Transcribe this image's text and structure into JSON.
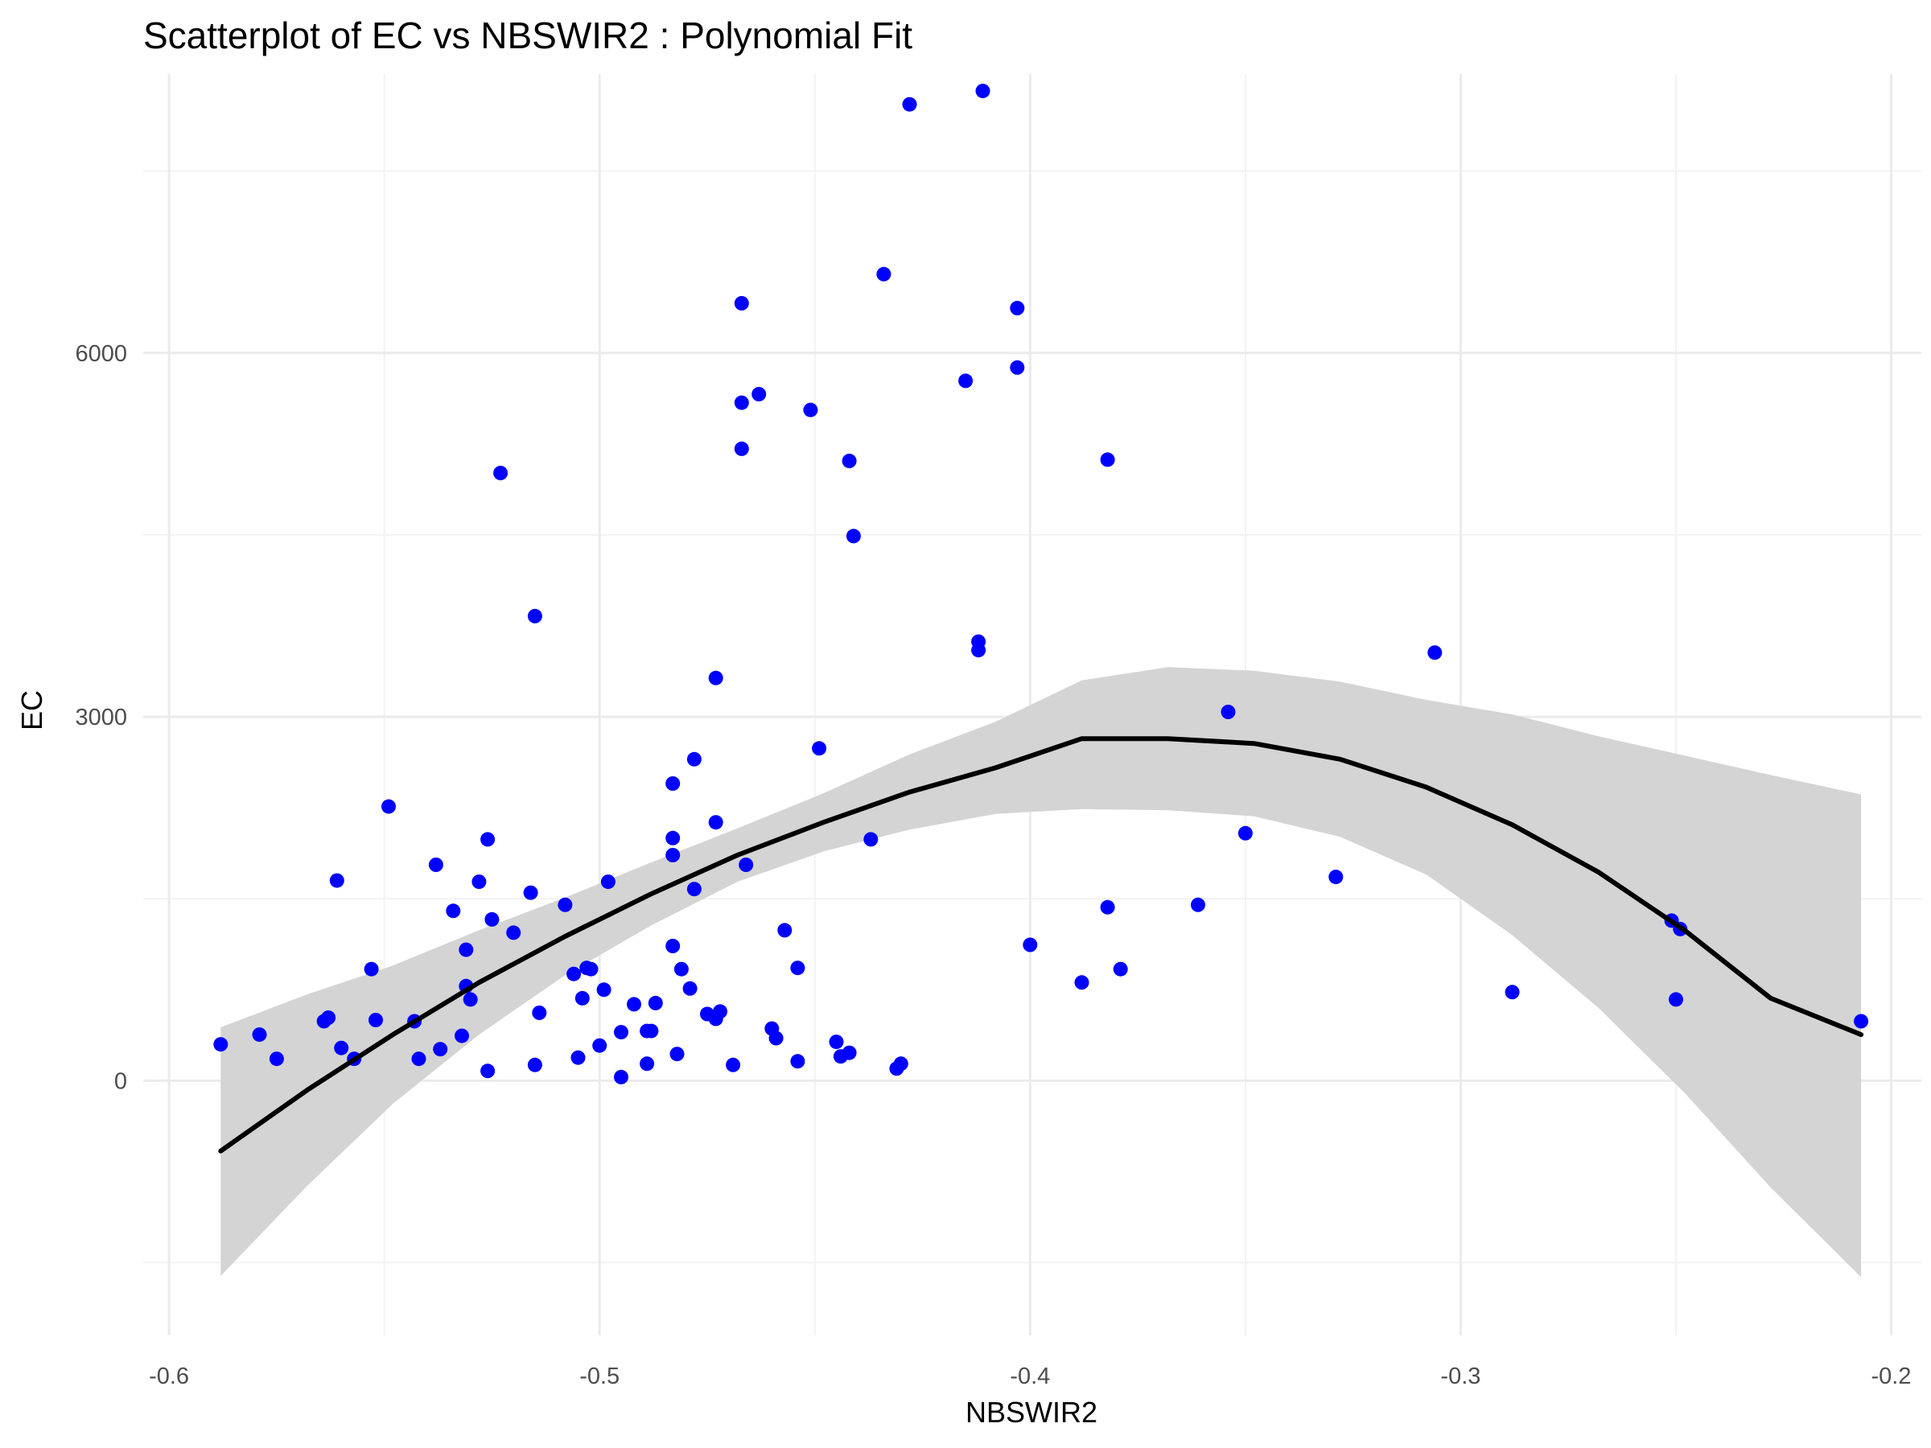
{
  "chart_data": {
    "type": "scatter",
    "title": "Scatterplot of EC vs NBSWIR2 : Polynomial Fit",
    "xlabel": "NBSWIR2",
    "ylabel": "EC",
    "xlim": [
      -0.606,
      -0.193
    ],
    "ylim": [
      -2100,
      8300
    ],
    "x_ticks": [
      -0.6,
      -0.5,
      -0.4,
      -0.3,
      -0.2
    ],
    "x_tick_labels": [
      "-0.6",
      "-0.5",
      "-0.4",
      "-0.3",
      "-0.2"
    ],
    "y_ticks": [
      0,
      3000,
      6000
    ],
    "y_tick_labels": [
      "0",
      "3000",
      "6000"
    ],
    "grid": true,
    "point_color": "#0000ff",
    "fit_color": "#000000",
    "band_color": "#d4d4d4",
    "points": [
      {
        "x": -0.588,
        "y": 300
      },
      {
        "x": -0.579,
        "y": 380
      },
      {
        "x": -0.575,
        "y": 180
      },
      {
        "x": -0.564,
        "y": 490
      },
      {
        "x": -0.563,
        "y": 520
      },
      {
        "x": -0.561,
        "y": 1650
      },
      {
        "x": -0.56,
        "y": 270
      },
      {
        "x": -0.557,
        "y": 180
      },
      {
        "x": -0.553,
        "y": 920
      },
      {
        "x": -0.552,
        "y": 500
      },
      {
        "x": -0.549,
        "y": 2260
      },
      {
        "x": -0.543,
        "y": 490
      },
      {
        "x": -0.542,
        "y": 180
      },
      {
        "x": -0.538,
        "y": 1780
      },
      {
        "x": -0.537,
        "y": 260
      },
      {
        "x": -0.534,
        "y": 1400
      },
      {
        "x": -0.532,
        "y": 370
      },
      {
        "x": -0.531,
        "y": 780
      },
      {
        "x": -0.531,
        "y": 1080
      },
      {
        "x": -0.53,
        "y": 670
      },
      {
        "x": -0.528,
        "y": 1640
      },
      {
        "x": -0.526,
        "y": 1990
      },
      {
        "x": -0.526,
        "y": 80
      },
      {
        "x": -0.525,
        "y": 1330
      },
      {
        "x": -0.523,
        "y": 5010
      },
      {
        "x": -0.52,
        "y": 1220
      },
      {
        "x": -0.516,
        "y": 1550
      },
      {
        "x": -0.515,
        "y": 3830
      },
      {
        "x": -0.515,
        "y": 130
      },
      {
        "x": -0.514,
        "y": 560
      },
      {
        "x": -0.508,
        "y": 1450
      },
      {
        "x": -0.506,
        "y": 880
      },
      {
        "x": -0.505,
        "y": 190
      },
      {
        "x": -0.504,
        "y": 680
      },
      {
        "x": -0.503,
        "y": 930
      },
      {
        "x": -0.502,
        "y": 920
      },
      {
        "x": -0.5,
        "y": 290
      },
      {
        "x": -0.499,
        "y": 750
      },
      {
        "x": -0.498,
        "y": 1640
      },
      {
        "x": -0.495,
        "y": 400
      },
      {
        "x": -0.495,
        "y": 30
      },
      {
        "x": -0.492,
        "y": 630
      },
      {
        "x": -0.489,
        "y": 410
      },
      {
        "x": -0.489,
        "y": 140
      },
      {
        "x": -0.488,
        "y": 410
      },
      {
        "x": -0.487,
        "y": 640
      },
      {
        "x": -0.483,
        "y": 2450
      },
      {
        "x": -0.483,
        "y": 1110
      },
      {
        "x": -0.483,
        "y": 2000
      },
      {
        "x": -0.483,
        "y": 1860
      },
      {
        "x": -0.482,
        "y": 220
      },
      {
        "x": -0.481,
        "y": 920
      },
      {
        "x": -0.479,
        "y": 760
      },
      {
        "x": -0.478,
        "y": 1580
      },
      {
        "x": -0.478,
        "y": 2650
      },
      {
        "x": -0.475,
        "y": 550
      },
      {
        "x": -0.473,
        "y": 3320
      },
      {
        "x": -0.473,
        "y": 2130
      },
      {
        "x": -0.473,
        "y": 510
      },
      {
        "x": -0.472,
        "y": 570
      },
      {
        "x": -0.469,
        "y": 130
      },
      {
        "x": -0.467,
        "y": 5590
      },
      {
        "x": -0.467,
        "y": 6410
      },
      {
        "x": -0.467,
        "y": 5210
      },
      {
        "x": -0.466,
        "y": 1780
      },
      {
        "x": -0.463,
        "y": 5660
      },
      {
        "x": -0.46,
        "y": 430
      },
      {
        "x": -0.459,
        "y": 350
      },
      {
        "x": -0.457,
        "y": 1240
      },
      {
        "x": -0.454,
        "y": 160
      },
      {
        "x": -0.454,
        "y": 930
      },
      {
        "x": -0.451,
        "y": 5530
      },
      {
        "x": -0.449,
        "y": 2740
      },
      {
        "x": -0.445,
        "y": 320
      },
      {
        "x": -0.444,
        "y": 200
      },
      {
        "x": -0.442,
        "y": 5110
      },
      {
        "x": -0.442,
        "y": 230
      },
      {
        "x": -0.441,
        "y": 4490
      },
      {
        "x": -0.437,
        "y": 1990
      },
      {
        "x": -0.434,
        "y": 6650
      },
      {
        "x": -0.431,
        "y": 100
      },
      {
        "x": -0.43,
        "y": 140
      },
      {
        "x": -0.428,
        "y": 8050
      },
      {
        "x": -0.415,
        "y": 5770
      },
      {
        "x": -0.412,
        "y": 3620
      },
      {
        "x": -0.412,
        "y": 3550
      },
      {
        "x": -0.411,
        "y": 8160
      },
      {
        "x": -0.403,
        "y": 6370
      },
      {
        "x": -0.403,
        "y": 5880
      },
      {
        "x": -0.4,
        "y": 1120
      },
      {
        "x": -0.388,
        "y": 810
      },
      {
        "x": -0.382,
        "y": 5120
      },
      {
        "x": -0.382,
        "y": 1430
      },
      {
        "x": -0.379,
        "y": 920
      },
      {
        "x": -0.361,
        "y": 1450
      },
      {
        "x": -0.354,
        "y": 3040
      },
      {
        "x": -0.35,
        "y": 2040
      },
      {
        "x": -0.329,
        "y": 1680
      },
      {
        "x": -0.306,
        "y": 3530
      },
      {
        "x": -0.288,
        "y": 730
      },
      {
        "x": -0.251,
        "y": 1320
      },
      {
        "x": -0.25,
        "y": 670
      },
      {
        "x": -0.249,
        "y": 1250
      },
      {
        "x": -0.207,
        "y": 490
      }
    ],
    "fit": {
      "x": [
        -0.588,
        -0.568,
        -0.548,
        -0.528,
        -0.508,
        -0.488,
        -0.468,
        -0.448,
        -0.428,
        -0.408,
        -0.388,
        -0.368,
        -0.348,
        -0.328,
        -0.308,
        -0.288,
        -0.268,
        -0.248,
        -0.228,
        -0.207
      ],
      "y": [
        -580,
        -80,
        380,
        810,
        1190,
        1540,
        1860,
        2130,
        2380,
        2580,
        2820,
        2820,
        2780,
        2650,
        2420,
        2110,
        1720,
        1240,
        680,
        380
      ],
      "lower": [
        -1610,
        -870,
        -190,
        380,
        870,
        1280,
        1640,
        1890,
        2070,
        2200,
        2240,
        2230,
        2180,
        2010,
        1700,
        1200,
        600,
        -100,
        -880,
        -1620
      ],
      "upper": [
        440,
        710,
        950,
        1240,
        1510,
        1800,
        2080,
        2370,
        2690,
        2960,
        3300,
        3410,
        3380,
        3290,
        3140,
        3020,
        2840,
        2680,
        2520,
        2360
      ]
    }
  }
}
